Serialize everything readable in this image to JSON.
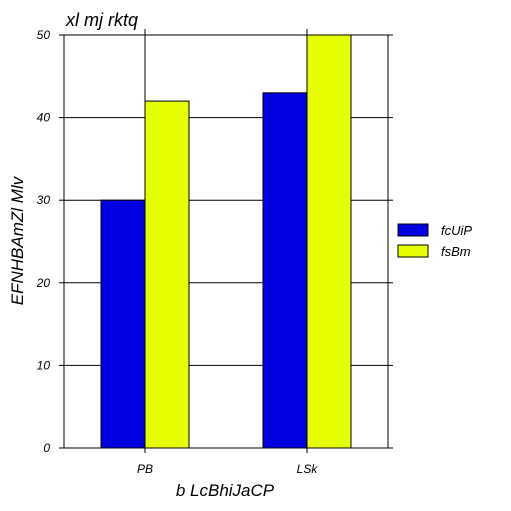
{
  "chart_data": {
    "type": "bar",
    "title": "xl mj  rktq",
    "xlabel": "b  LcBhiJaCP",
    "ylabel": "EFNHBAmZl  Mlv",
    "categories": [
      "PB",
      "LSk"
    ],
    "series": [
      {
        "name": "fcUiP",
        "color": "#0000e0",
        "values": [
          30,
          43
        ]
      },
      {
        "name": "fsBm",
        "color": "#e6ff00",
        "values": [
          42,
          50
        ]
      }
    ],
    "ylim": [
      0,
      50
    ],
    "yticks": [
      0,
      10,
      20,
      30,
      40,
      50
    ],
    "grid": true,
    "legend_position": "right"
  }
}
